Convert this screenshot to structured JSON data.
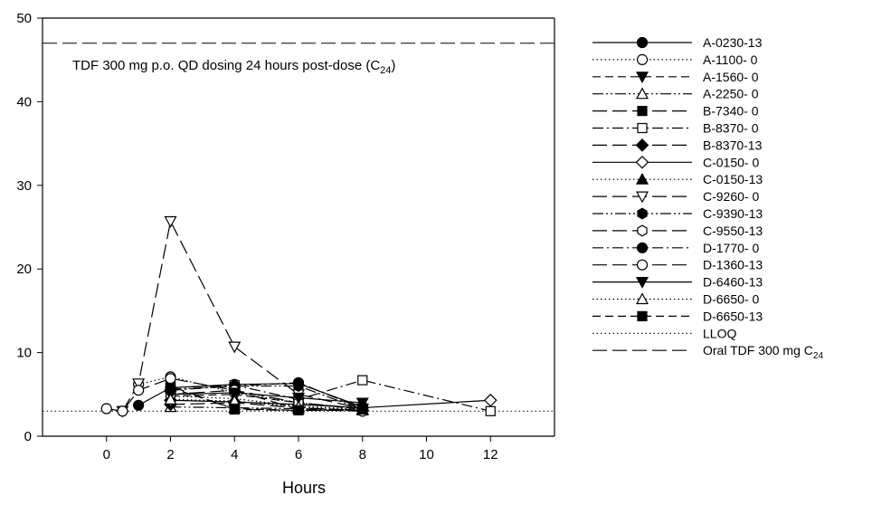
{
  "chart_data": {
    "type": "line",
    "xlabel": "Hours",
    "ylabel": "",
    "xlim": [
      -2,
      14
    ],
    "ylim": [
      0,
      50
    ],
    "x_ticks": [
      0,
      2,
      4,
      6,
      8,
      10,
      12
    ],
    "y_ticks": [
      0,
      10,
      20,
      30,
      40,
      50
    ],
    "grid": false,
    "legend_position": "right",
    "annotation": {
      "text": "TDF 300 mg p.o. QD dosing 24 hours post-dose (C",
      "sub": "24",
      "close": ")"
    },
    "reference_lines": [
      {
        "name": "LLOQ",
        "y": 3,
        "dash": "dot"
      },
      {
        "name": "Oral TDF 300 mg C",
        "sub": "24",
        "y": 47,
        "dash": "longdash"
      }
    ],
    "series": [
      {
        "name": "A-0230-13",
        "marker": "circle",
        "fill": "black",
        "dash": "solid",
        "x": [
          1,
          2,
          4,
          6,
          8
        ],
        "y": [
          3.7,
          5.8,
          6.2,
          6.3,
          3.5
        ]
      },
      {
        "name": "A-1100-  0",
        "marker": "circle",
        "fill": "white",
        "dash": "dot",
        "x": [
          1,
          2,
          4,
          6,
          8
        ],
        "y": [
          6.2,
          7.1,
          5.2,
          4.0,
          3.3
        ]
      },
      {
        "name": "A-1560-  0",
        "marker": "triangle-down",
        "fill": "black",
        "dash": "dash",
        "x": [
          2,
          4,
          6,
          8
        ],
        "y": [
          4.8,
          5.0,
          4.0,
          3.2
        ]
      },
      {
        "name": "A-2250-  0",
        "marker": "triangle-up",
        "fill": "white",
        "dash": "dashdotdot",
        "x": [
          2,
          4,
          6,
          8
        ],
        "y": [
          3.5,
          3.4,
          3.3,
          3.1
        ]
      },
      {
        "name": "B-7340-  0",
        "marker": "square",
        "fill": "black",
        "dash": "longdash",
        "x": [
          2,
          4,
          6,
          8
        ],
        "y": [
          6.0,
          3.2,
          3.1,
          3.1
        ]
      },
      {
        "name": "B-8370-  0",
        "marker": "square",
        "fill": "white",
        "dash": "dashdot",
        "x": [
          2,
          4,
          6,
          8,
          12
        ],
        "y": [
          5.8,
          6.1,
          4.4,
          6.7,
          3.0
        ]
      },
      {
        "name": "B-8370-13",
        "marker": "diamond",
        "fill": "black",
        "dash": "longdash",
        "x": [
          2,
          4,
          6,
          8
        ],
        "y": [
          3.8,
          4.0,
          3.4,
          3.1
        ]
      },
      {
        "name": "C-0150-  0",
        "marker": "diamond",
        "fill": "white",
        "dash": "solid",
        "x": [
          2,
          4,
          6,
          8,
          12
        ],
        "y": [
          4.3,
          4.1,
          3.8,
          3.4,
          4.3
        ]
      },
      {
        "name": "C-0150-13",
        "marker": "triangle-up",
        "fill": "black",
        "dash": "dot",
        "x": [
          2,
          4,
          6,
          8
        ],
        "y": [
          4.8,
          4.5,
          3.6,
          3.2
        ]
      },
      {
        "name": "C-9260-  0",
        "marker": "triangle-down",
        "fill": "white",
        "dash": "longdash",
        "x": [
          0.5,
          1,
          2,
          4,
          6,
          8
        ],
        "y": [
          3.0,
          6.3,
          25.7,
          10.7,
          5.0,
          3.3
        ]
      },
      {
        "name": "C-9390-13",
        "marker": "hexagon",
        "fill": "black",
        "dash": "dashdotdot",
        "x": [
          2,
          4,
          6,
          8
        ],
        "y": [
          5.6,
          6.0,
          6.0,
          3.2
        ]
      },
      {
        "name": "C-9550-13",
        "marker": "hexagon",
        "fill": "white",
        "dash": "longdash",
        "x": [
          2,
          4,
          6,
          8
        ],
        "y": [
          5.0,
          5.5,
          4.0,
          3.3
        ]
      },
      {
        "name": "D-1770-  0",
        "marker": "circle",
        "fill": "black",
        "dash": "dashdot",
        "x": [
          2,
          4,
          6,
          8
        ],
        "y": [
          5.5,
          6.0,
          6.4,
          3.3
        ]
      },
      {
        "name": "D-1360-13",
        "marker": "circle",
        "fill": "white",
        "dash": "longdash",
        "x": [
          0,
          0.5,
          1,
          2,
          4,
          6,
          8
        ],
        "y": [
          3.3,
          3.0,
          5.5,
          6.9,
          5.5,
          3.2,
          3.0
        ]
      },
      {
        "name": "D-6460-13",
        "marker": "triangle-down",
        "fill": "black",
        "dash": "solid",
        "x": [
          2,
          4,
          6,
          8
        ],
        "y": [
          5.0,
          5.2,
          4.6,
          4.0
        ]
      },
      {
        "name": "D-6650-  0",
        "marker": "triangle-up",
        "fill": "white",
        "dash": "dot",
        "x": [
          2,
          4,
          6,
          8
        ],
        "y": [
          4.4,
          4.2,
          3.5,
          3.2
        ]
      },
      {
        "name": "D-6650-13",
        "marker": "square",
        "fill": "black",
        "dash": "dash",
        "x": [
          2,
          4,
          6,
          8
        ],
        "y": [
          5.8,
          3.3,
          3.1,
          3.2
        ]
      }
    ]
  }
}
